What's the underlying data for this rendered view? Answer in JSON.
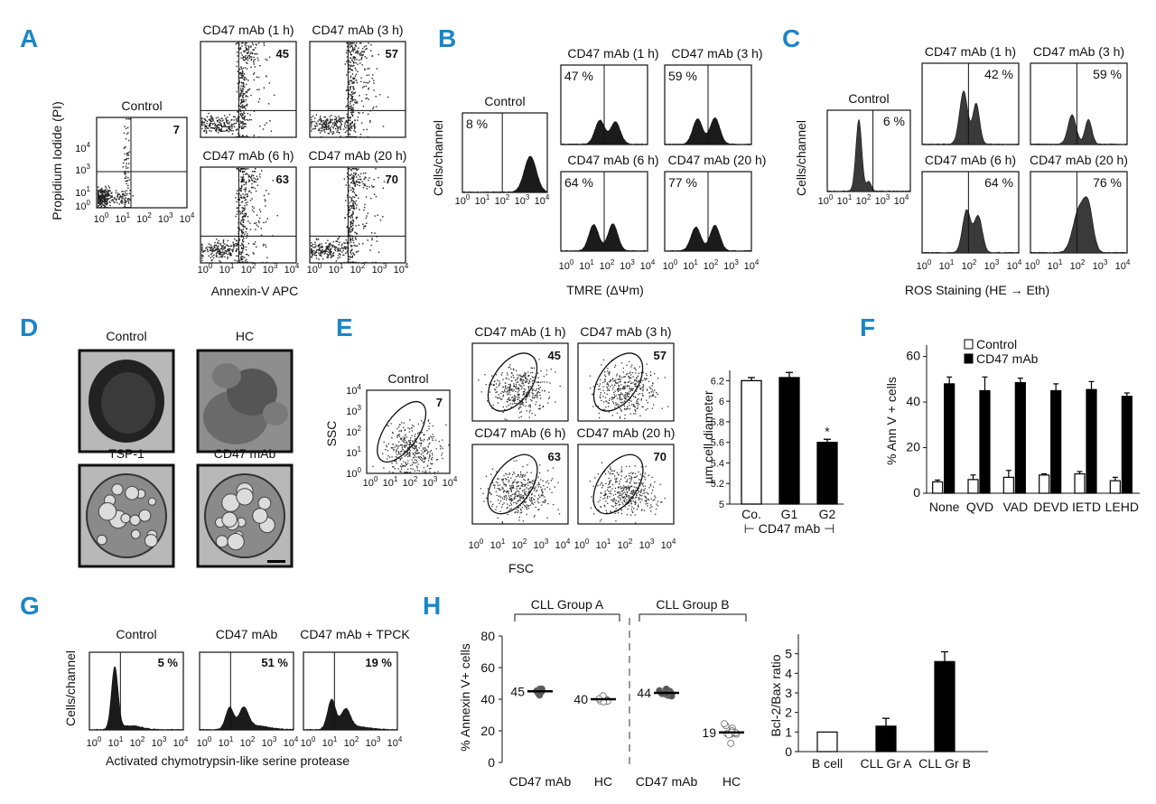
{
  "figure": {
    "panel_letters": [
      "A",
      "B",
      "C",
      "D",
      "E",
      "F",
      "G",
      "H"
    ]
  },
  "chart_data": [
    {
      "panel": "A",
      "type": "scatter",
      "ylabel": "Propidium Iodide (PI)",
      "xlabel": "Annexin-V APC",
      "axis_ticks": [
        "10^0",
        "10^1",
        "10^2",
        "10^3",
        "10^4"
      ],
      "plots": [
        {
          "title": "Control",
          "value": "7"
        },
        {
          "title": "CD47 mAb (1 h)",
          "value": "45"
        },
        {
          "title": "CD47 mAb (3 h)",
          "value": "57"
        },
        {
          "title": "CD47 mAb (6 h)",
          "value": "63"
        },
        {
          "title": "CD47 mAb (20 h)",
          "value": "70"
        }
      ]
    },
    {
      "panel": "B",
      "type": "area",
      "ylabel": "Cells/channel",
      "xlabel": "TMRE (ΔΨm)",
      "axis_ticks": [
        "10^0",
        "10^1",
        "10^2",
        "10^3",
        "10^4"
      ],
      "plots": [
        {
          "title": "Control",
          "value": "8 %"
        },
        {
          "title": "CD47 mAb (1 h)",
          "value": "47 %"
        },
        {
          "title": "CD47 mAb (3 h)",
          "value": "59 %"
        },
        {
          "title": "CD47 mAb (6 h)",
          "value": "64 %"
        },
        {
          "title": "CD47 mAb (20 h)",
          "value": "77 %"
        }
      ]
    },
    {
      "panel": "C",
      "type": "area",
      "ylabel": "Cells/channel",
      "xlabel": "ROS Staining (HE → Eth)",
      "axis_ticks": [
        "10^0",
        "10^1",
        "10^2",
        "10^3",
        "10^4"
      ],
      "plots": [
        {
          "title": "Control",
          "value": "6 %"
        },
        {
          "title": "CD47 mAb (1 h)",
          "value": "42 %"
        },
        {
          "title": "CD47 mAb (3 h)",
          "value": "59 %"
        },
        {
          "title": "CD47 mAb (6 h)",
          "value": "64 %"
        },
        {
          "title": "CD47 mAb (20 h)",
          "value": "76 %"
        }
      ]
    },
    {
      "panel": "D",
      "type": "other",
      "images": [
        "Control",
        "HC",
        "TSP-1",
        "CD47 mAb"
      ]
    },
    {
      "panel": "E",
      "type": "scatter",
      "ylabel": "SSC",
      "xlabel": "FSC",
      "axis_ticks": [
        "10^0",
        "10^1",
        "10^2",
        "10^3",
        "10^4"
      ],
      "plots": [
        {
          "title": "Control",
          "value": "7"
        },
        {
          "title": "CD47 mAb (1 h)",
          "value": "45"
        },
        {
          "title": "CD47 mAb (3 h)",
          "value": "57"
        },
        {
          "title": "CD47 mAb (6 h)",
          "value": "63"
        },
        {
          "title": "CD47 mAb (20 h)",
          "value": "70"
        }
      ],
      "bar": {
        "type": "bar",
        "ylabel": "µm cell diameter",
        "ylim": [
          5,
          6.3
        ],
        "yticks": [
          "5",
          "5.2",
          "5.4",
          "5.6",
          "5.8",
          "6",
          "6.2"
        ],
        "categories": [
          "Co.",
          "G1",
          "G2"
        ],
        "values": [
          6.2,
          6.23,
          5.6
        ],
        "errors": [
          0.03,
          0.05,
          0.03
        ],
        "significance": [
          "",
          "",
          "*"
        ],
        "bracket_label": "CD47 mAb"
      }
    },
    {
      "panel": "F",
      "type": "bar",
      "ylabel": "% Ann V + cells",
      "ylim": [
        0,
        65
      ],
      "yticks": [
        0,
        20,
        40,
        60
      ],
      "categories": [
        "None",
        "QVD",
        "VAD",
        "DEVD",
        "IETD",
        "LEHD"
      ],
      "series": [
        {
          "name": "Control",
          "values": [
            5,
            6,
            7,
            8,
            8.5,
            5.5
          ],
          "errors": [
            0.8,
            2,
            3,
            0.5,
            1,
            1.5
          ]
        },
        {
          "name": "CD47 mAb",
          "values": [
            48,
            45,
            48.5,
            45,
            45.5,
            42.5
          ],
          "errors": [
            3,
            6,
            2,
            3,
            3.5,
            1.5
          ]
        }
      ]
    },
    {
      "panel": "G",
      "type": "area",
      "ylabel": "Cells/channel",
      "xlabel": "Activated chymotrypsin-like serine protease",
      "axis_ticks": [
        "10^0",
        "10^1",
        "10^2",
        "10^3",
        "10^4"
      ],
      "plots": [
        {
          "title": "Control",
          "value": "5 %"
        },
        {
          "title": "CD47 mAb",
          "value": "51 %"
        },
        {
          "title": "CD47 mAb + TPCK",
          "value": "19 %"
        }
      ]
    },
    {
      "panel": "H",
      "type": "scatter",
      "ylabel": "% Annexin V+ cells",
      "ylim": [
        0,
        80
      ],
      "yticks": [
        0,
        20,
        40,
        60,
        80
      ],
      "groups": [
        "CLL Group A",
        "CLL Group B"
      ],
      "categories": [
        "CD47 mAb",
        "HC",
        "CD47 mAb",
        "HC"
      ],
      "means": [
        45,
        40,
        44,
        19
      ],
      "mean_labels": [
        "45",
        "40",
        "44",
        "19"
      ],
      "bar": {
        "type": "bar",
        "ylabel": "Bcl-2/Bax ratio",
        "ylim": [
          0,
          6
        ],
        "yticks": [
          0,
          1,
          2,
          3,
          4,
          5
        ],
        "categories": [
          "B cell",
          "CLL Gr A",
          "CLL Gr B"
        ],
        "values": [
          1.0,
          1.3,
          4.6
        ],
        "errors": [
          0,
          0.4,
          0.5
        ]
      }
    }
  ]
}
